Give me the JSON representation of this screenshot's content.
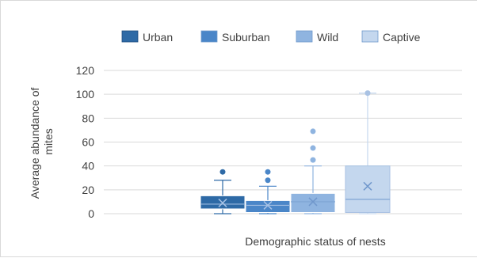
{
  "chart_data": {
    "type": "boxplot",
    "title": "",
    "xlabel": "Demographic status of nests",
    "ylabel_lines": [
      "Average abundance of",
      "mites"
    ],
    "ylim": [
      0,
      120
    ],
    "yticks": [
      0,
      20,
      40,
      60,
      80,
      100,
      120
    ],
    "grid": true,
    "legend_position": "top",
    "series": [
      {
        "name": "Urban",
        "color": "#2e6aa6",
        "q1": 4,
        "median": 8,
        "q3": 15,
        "min": 0,
        "max": 28,
        "mean": 9,
        "outliers": [
          35
        ]
      },
      {
        "name": "Suburban",
        "color": "#4a86c8",
        "q1": 1,
        "median": 7,
        "q3": 11,
        "min": 0,
        "max": 23,
        "mean": 7,
        "outliers": [
          28,
          35
        ]
      },
      {
        "name": "Wild",
        "color": "#8fb4e0",
        "q1": 1,
        "median": 10,
        "q3": 17,
        "min": 0,
        "max": 40,
        "mean": 10,
        "outliers": [
          45,
          55,
          69
        ]
      },
      {
        "name": "Captive",
        "color": "#c4d7ee",
        "q1": 1,
        "median": 12,
        "q3": 40,
        "min": 0,
        "max": 101,
        "mean": 23,
        "outliers": [
          101
        ]
      }
    ]
  }
}
